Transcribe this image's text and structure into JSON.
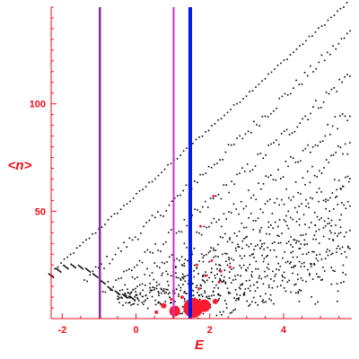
{
  "chart_data": {
    "type": "scatter",
    "xlabel": "E",
    "ylabel": "<n>",
    "xlim": [
      -2.3,
      5.85
    ],
    "ylim": [
      0,
      145
    ],
    "x_ticks": [
      -2,
      0,
      2,
      4
    ],
    "x_tick_labels": [
      "-2",
      "0",
      "2",
      "4"
    ],
    "y_ticks": [
      50,
      100
    ],
    "y_tick_labels": [
      "50",
      "100"
    ],
    "grid": false,
    "colors": {
      "axes": "#e8101a",
      "points": "#000000",
      "highlight_points": "#ff1a2e",
      "vline_magenta": "#cc33cc",
      "vline_blue": "#0018e8",
      "vline_purple": "#8a2a9a"
    },
    "vertical_lines": [
      {
        "x": -0.98,
        "color": "#8a2a9a",
        "width": 2.5
      },
      {
        "x": 1.02,
        "color": "#cc33cc",
        "width": 2
      },
      {
        "x": 1.47,
        "color": "#0018e8",
        "width": 4
      }
    ],
    "bands": [
      {
        "x_start": -2.2,
        "x_end": 5.8,
        "y_start": 23,
        "y_end": 148,
        "curve": 1.0
      },
      {
        "x_start": -1.4,
        "x_end": 5.8,
        "y_start": 18,
        "y_end": 133,
        "curve": 1.05
      },
      {
        "x_start": -0.9,
        "x_end": 5.8,
        "y_start": 14,
        "y_end": 114,
        "curve": 1.1
      },
      {
        "x_start": -0.5,
        "x_end": 5.8,
        "y_start": 12,
        "y_end": 97,
        "curve": 1.15
      },
      {
        "x_start": -0.2,
        "x_end": 5.8,
        "y_start": 10,
        "y_end": 81,
        "curve": 1.2
      },
      {
        "x_start": 0.2,
        "x_end": 5.8,
        "y_start": 9,
        "y_end": 66,
        "curve": 1.25
      },
      {
        "x_start": 0.6,
        "x_end": 5.8,
        "y_start": 8,
        "y_end": 52,
        "curve": 1.3
      },
      {
        "x_start": 1.0,
        "x_end": 5.8,
        "y_start": 7,
        "y_end": 40,
        "curve": 1.35
      },
      {
        "x_start": 1.5,
        "x_end": 5.8,
        "y_start": 6,
        "y_end": 30,
        "curve": 1.4
      }
    ],
    "low_arc": [
      [
        -2.3,
        20
      ],
      [
        -2.1,
        22.5
      ],
      [
        -1.9,
        24
      ],
      [
        -1.7,
        24.5
      ],
      [
        -1.5,
        24
      ],
      [
        -1.3,
        22.5
      ],
      [
        -1.1,
        20
      ],
      [
        -0.9,
        17
      ],
      [
        -0.7,
        14
      ],
      [
        -0.5,
        12
      ],
      [
        -0.3,
        10.5
      ],
      [
        -0.1,
        9.5
      ]
    ],
    "highlight_points": [
      {
        "x": 1.55,
        "y": 5,
        "r": 11
      },
      {
        "x": 1.85,
        "y": 6,
        "r": 7
      },
      {
        "x": 1.05,
        "y": 3.5,
        "r": 6
      },
      {
        "x": 2.15,
        "y": 8,
        "r": 3
      },
      {
        "x": 0.75,
        "y": 6,
        "r": 3
      },
      {
        "x": 0.55,
        "y": 3,
        "r": 2
      },
      {
        "x": 1.25,
        "y": 10,
        "r": 2
      },
      {
        "x": 1.7,
        "y": 14,
        "r": 1.5
      },
      {
        "x": 1.9,
        "y": 20,
        "r": 1.5
      },
      {
        "x": 2.3,
        "y": 22,
        "r": 1.5
      },
      {
        "x": 2.05,
        "y": 27,
        "r": 1.5
      },
      {
        "x": 1.65,
        "y": 25,
        "r": 1.5
      },
      {
        "x": 2.55,
        "y": 24,
        "r": 1.5
      },
      {
        "x": 1.45,
        "y": 18,
        "r": 1.5
      },
      {
        "x": 0.95,
        "y": 9,
        "r": 1.5
      },
      {
        "x": 2.1,
        "y": 57,
        "r": 1.5
      },
      {
        "x": 1.75,
        "y": 43,
        "r": 1.5
      },
      {
        "x": 2.25,
        "y": 17,
        "r": 1.5
      }
    ]
  }
}
